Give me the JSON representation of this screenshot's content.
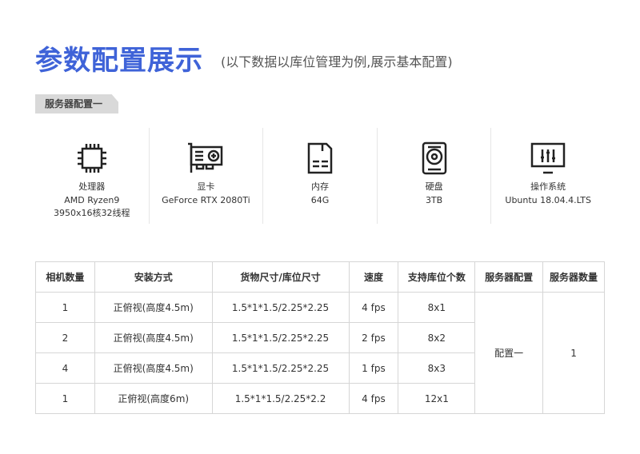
{
  "header": {
    "title": "参数配置展示",
    "subtitle": "(以下数据以库位管理为例,展示基本配置)"
  },
  "section_tag": "服务器配置一",
  "specs": [
    {
      "icon": "cpu-icon",
      "label": "处理器",
      "value": "AMD Ryzen9",
      "value2": "3950x16核32线程"
    },
    {
      "icon": "graphics-card-icon",
      "label": "显卡",
      "value": "GeForce RTX 2080Ti"
    },
    {
      "icon": "memory-icon",
      "label": "内存",
      "value": "64G"
    },
    {
      "icon": "hard-disk-icon",
      "label": "硬盘",
      "value": "3TB"
    },
    {
      "icon": "monitor-settings-icon",
      "label": "操作系统",
      "value": "Ubuntu 18.04.4.LTS"
    }
  ],
  "table": {
    "headers": [
      "相机数量",
      "安装方式",
      "货物尺寸/库位尺寸",
      "速度",
      "支持库位个数",
      "服务器配置",
      "服务器数量"
    ],
    "rows": [
      [
        "1",
        "正俯视(高度4.5m)",
        "1.5*1*1.5/2.25*2.25",
        "4 fps",
        "8x1"
      ],
      [
        "2",
        "正俯视(高度4.5m)",
        "1.5*1*1.5/2.25*2.25",
        "2 fps",
        "8x2"
      ],
      [
        "4",
        "正俯视(高度4.5m)",
        "1.5*1*1.5/2.25*2.25",
        "1 fps",
        "8x3"
      ],
      [
        "1",
        "正俯视(高度6m)",
        "1.5*1*1.5/2.25*2.2",
        "4 fps",
        "12x1"
      ]
    ],
    "server_config": "配置一",
    "server_count": "1"
  }
}
